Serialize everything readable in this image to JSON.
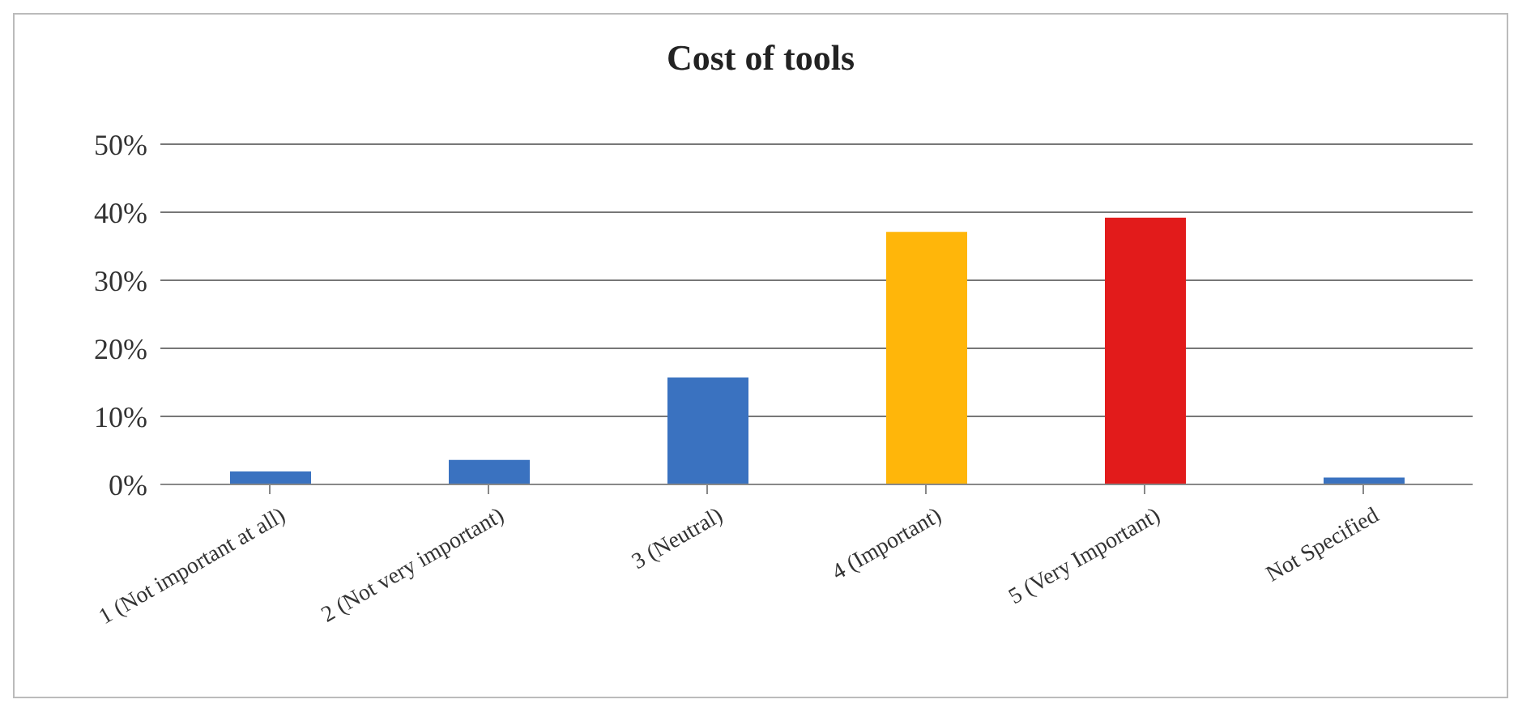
{
  "chart_data": {
    "type": "bar",
    "title": "Cost of tools",
    "categories": [
      "1 (Not important at all)",
      "2 (Not very important)",
      "3 (Neutral)",
      "4 (Important)",
      "5 (Very Important)",
      "Not Specified"
    ],
    "values": [
      1.9,
      3.6,
      15.7,
      37.1,
      39.2,
      1.0
    ],
    "colors": [
      "#3a72c0",
      "#3a72c0",
      "#3a72c0",
      "#ffb60a",
      "#e21b1b",
      "#3a72c0"
    ],
    "ylim": [
      0,
      50
    ],
    "yticks": [
      {
        "value": 0,
        "label": "0%"
      },
      {
        "value": 10,
        "label": "10%"
      },
      {
        "value": 20,
        "label": "20%"
      },
      {
        "value": 30,
        "label": "30%"
      },
      {
        "value": 40,
        "label": "40%"
      },
      {
        "value": 50,
        "label": "50%"
      }
    ],
    "grid": "y"
  }
}
